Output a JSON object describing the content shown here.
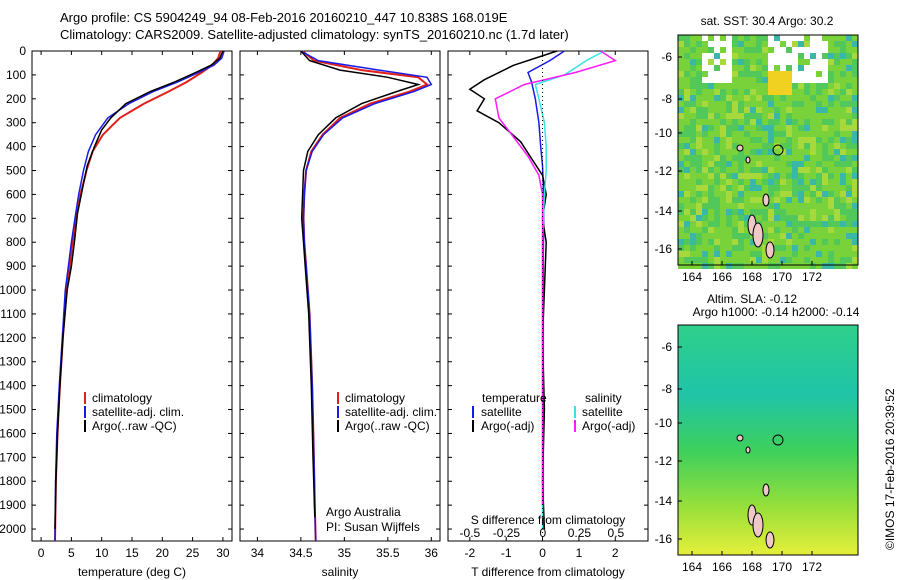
{
  "header": {
    "line1": "Argo profile: CS 5904249_94 08-Feb-2016 20160210_447 10.838S 168.019E",
    "line2": "Climatology: CARS2009. Satellite-adjusted climatology: synTS_20160210.nc (1.7d later)"
  },
  "colors": {
    "climatology": "#e0201b",
    "satellite": "#1a1ae6",
    "argo": "#000000",
    "sal_satellite": "#33e6e6",
    "sal_argo": "#ff1aff"
  },
  "depth_axis": {
    "ylim": [
      0,
      2050
    ],
    "ticks": [
      "0",
      "100",
      "200",
      "300",
      "400",
      "500",
      "600",
      "700",
      "800",
      "900",
      "1000",
      "1100",
      "1200",
      "1300",
      "1400",
      "1500",
      "1600",
      "1700",
      "1800",
      "1900",
      "2000"
    ]
  },
  "chart_data": [
    {
      "type": "line",
      "id": "temperature",
      "xlabel": "temperature (deg C)",
      "ylabel": "",
      "xlim": [
        -1.5,
        31.5
      ],
      "ylim": [
        0,
        2050
      ],
      "xticks": [
        "0",
        "5",
        "10",
        "15",
        "20",
        "25",
        "30"
      ],
      "legend": [
        "climatology",
        "satellite-adj. clim.",
        "Argo(..raw -QC)"
      ],
      "series": [
        {
          "name": "climatology",
          "x": [
            29.6,
            29.2,
            28.2,
            26.5,
            24.0,
            21.0,
            17.0,
            13.0,
            10.2,
            8.5,
            7.5,
            6.5,
            5.8,
            5.2,
            4.7,
            4.2,
            3.6,
            3.1,
            2.7,
            2.45,
            2.3
          ],
          "y": [
            0,
            30,
            60,
            90,
            130,
            170,
            220,
            280,
            350,
            420,
            500,
            600,
            700,
            800,
            900,
            1000,
            1200,
            1400,
            1600,
            1800,
            2050
          ]
        },
        {
          "name": "satellite-adj. clim.",
          "x": [
            30.2,
            29.8,
            28.5,
            26.0,
            22.5,
            18.5,
            14.5,
            11.0,
            9.0,
            7.8,
            7.0,
            6.2,
            5.6,
            5.0,
            4.5,
            4.0,
            3.5,
            3.0,
            2.6,
            2.4,
            2.3
          ],
          "y": [
            0,
            30,
            60,
            90,
            130,
            170,
            220,
            280,
            350,
            420,
            500,
            600,
            700,
            800,
            900,
            1000,
            1200,
            1400,
            1600,
            1800,
            2050
          ]
        },
        {
          "name": "Argo(..raw -QC)",
          "x": [
            30.0,
            29.5,
            28.0,
            25.5,
            22.0,
            18.0,
            14.0,
            11.5,
            10.0,
            8.8,
            7.6,
            6.8,
            6.0,
            5.5,
            5.0,
            4.3,
            3.6,
            3.1,
            2.7,
            2.45,
            2.3
          ],
          "y": [
            0,
            30,
            60,
            90,
            130,
            170,
            220,
            280,
            330,
            400,
            480,
            580,
            680,
            800,
            900,
            1000,
            1200,
            1400,
            1600,
            1800,
            2000
          ]
        }
      ]
    },
    {
      "type": "line",
      "id": "salinity",
      "xlabel": "salinity",
      "xlim": [
        33.8,
        36.1
      ],
      "ylim": [
        0,
        2050
      ],
      "xticks": [
        "34",
        "34.5",
        "35",
        "35.5",
        "36"
      ],
      "legend": [
        "climatology",
        "satellite-adj. clim.",
        "Argo(..raw -QC)"
      ],
      "series": [
        {
          "name": "climatology",
          "x": [
            34.52,
            34.65,
            35.2,
            35.85,
            35.95,
            35.75,
            35.3,
            34.95,
            34.75,
            34.62,
            34.56,
            34.54,
            34.53,
            34.54,
            34.56,
            34.6,
            34.63,
            34.65,
            34.66,
            34.67
          ],
          "y": [
            0,
            40,
            80,
            110,
            140,
            170,
            220,
            280,
            350,
            420,
            500,
            600,
            700,
            800,
            900,
            1100,
            1400,
            1700,
            1900,
            2050
          ]
        },
        {
          "name": "satellite-adj. clim.",
          "x": [
            34.5,
            34.7,
            35.4,
            35.95,
            36.0,
            35.8,
            35.35,
            34.98,
            34.76,
            34.63,
            34.56,
            34.54,
            34.53,
            34.54,
            34.56,
            34.6,
            34.63,
            34.65,
            34.66,
            34.67
          ],
          "y": [
            0,
            40,
            80,
            110,
            140,
            170,
            220,
            280,
            350,
            420,
            500,
            600,
            700,
            800,
            900,
            1100,
            1400,
            1700,
            1900,
            2050
          ]
        },
        {
          "name": "Argo(..raw -QC)",
          "x": [
            34.5,
            34.6,
            34.95,
            35.5,
            35.85,
            35.6,
            35.2,
            34.9,
            34.7,
            34.58,
            34.53,
            34.52,
            34.51,
            34.53,
            34.55,
            34.59,
            34.62,
            34.64,
            34.66
          ],
          "y": [
            0,
            40,
            80,
            110,
            140,
            170,
            220,
            280,
            350,
            420,
            500,
            600,
            700,
            800,
            900,
            1100,
            1400,
            1700,
            1950
          ]
        }
      ]
    },
    {
      "type": "line",
      "id": "difference",
      "xlabel": "T difference from climatology",
      "xlabel2": "S difference from climatology",
      "xlim": [
        -2.6,
        2.9
      ],
      "ylim": [
        0,
        2050
      ],
      "xticks": [
        "-2",
        "-1",
        "0",
        "1",
        "2"
      ],
      "xticks2": [
        "-0.5",
        "-0.25",
        "0",
        "0.25",
        "0.5"
      ],
      "legend_headers": [
        "temperature",
        "salinity"
      ],
      "legend": [
        "satellite",
        "Argo(-adj)",
        "satellite",
        "Argo(-adj)"
      ],
      "series": [
        {
          "name": "T satellite",
          "x": [
            0.6,
            0.2,
            -0.4,
            -0.3,
            -0.2,
            -0.1,
            -0.05,
            0,
            0.02,
            0.03,
            0.03,
            0.02,
            0.02,
            0.02,
            0.02,
            0.02,
            0.02,
            0.02
          ],
          "y": [
            0,
            40,
            90,
            130,
            200,
            300,
            400,
            480,
            560,
            650,
            750,
            850,
            1000,
            1200,
            1400,
            1600,
            1800,
            2000
          ]
        },
        {
          "name": "T Argo(-adj)",
          "x": [
            0.4,
            -0.8,
            -1.6,
            -2.0,
            -1.6,
            -1.8,
            -1.2,
            -0.6,
            -0.3,
            0.0,
            0.1,
            0.0,
            0.1,
            0.05,
            0.0,
            0.05,
            0.0,
            0.05
          ],
          "y": [
            0,
            60,
            120,
            160,
            200,
            250,
            300,
            380,
            450,
            520,
            600,
            700,
            800,
            1000,
            1200,
            1500,
            1800,
            2000
          ]
        },
        {
          "name": "S satellite",
          "x": [
            1.7,
            1.2,
            0.6,
            -0.2,
            -0.1,
            0.05,
            0.1,
            0.1,
            0.05,
            0.02,
            0.0,
            0.0,
            0.0,
            0.0
          ],
          "y": [
            0,
            40,
            100,
            140,
            200,
            300,
            400,
            500,
            600,
            700,
            800,
            1000,
            1500,
            2000
          ]
        },
        {
          "name": "S Argo(-adj)",
          "x": [
            1.6,
            2.0,
            0.9,
            -0.5,
            -1.3,
            -1.2,
            -0.8,
            -0.4,
            -0.1,
            0.0,
            0.0,
            0.0,
            0.0
          ],
          "y": [
            0,
            40,
            90,
            140,
            200,
            280,
            360,
            440,
            520,
            600,
            800,
            1500,
            1900
          ]
        }
      ]
    }
  ],
  "sst_map": {
    "title": "sat. SST: 30.4  Argo: 30.2",
    "xticks": [
      "164",
      "166",
      "168",
      "170",
      "172"
    ],
    "yticks": [
      "-6",
      "-8",
      "-10",
      "-12",
      "-14",
      "-16"
    ]
  },
  "sla_map": {
    "title1": "Altim. SLA: -0.12",
    "title2": "Argo h1000: -0.14  h2000: -0.14",
    "xticks": [
      "164",
      "166",
      "168",
      "170",
      "172"
    ],
    "yticks": [
      "-6",
      "-8",
      "-10",
      "-12",
      "-14",
      "-16"
    ]
  },
  "credits": {
    "org": "Argo Australia",
    "pi": "PI: Susan Wijffels",
    "stamp": "©IMOS 17-Feb-2016 20:39:52"
  }
}
